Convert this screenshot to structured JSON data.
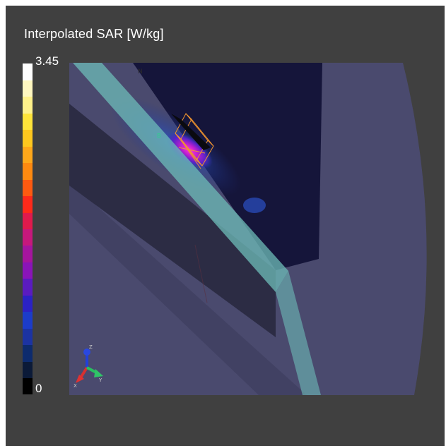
{
  "legend": {
    "title": "Interpolated SAR [W/kg]",
    "max_label": "3.45",
    "min_label": "0"
  },
  "colormap": [
    "#000000",
    "#0b1a38",
    "#0d2b6e",
    "#1c33a2",
    "#1c3cc9",
    "#2b22c4",
    "#5a1bc0",
    "#8a14b8",
    "#a5159e",
    "#c6187c",
    "#e01a4c",
    "#ff2a1a",
    "#ff5a10",
    "#ff8a10",
    "#ffa81a",
    "#ffc81e",
    "#ffe53a",
    "#fff28a",
    "#fff8c0",
    "#ffffff"
  ],
  "axes_triad": {
    "x_label": "X",
    "y_label": "Y",
    "z_label": "Z"
  }
}
